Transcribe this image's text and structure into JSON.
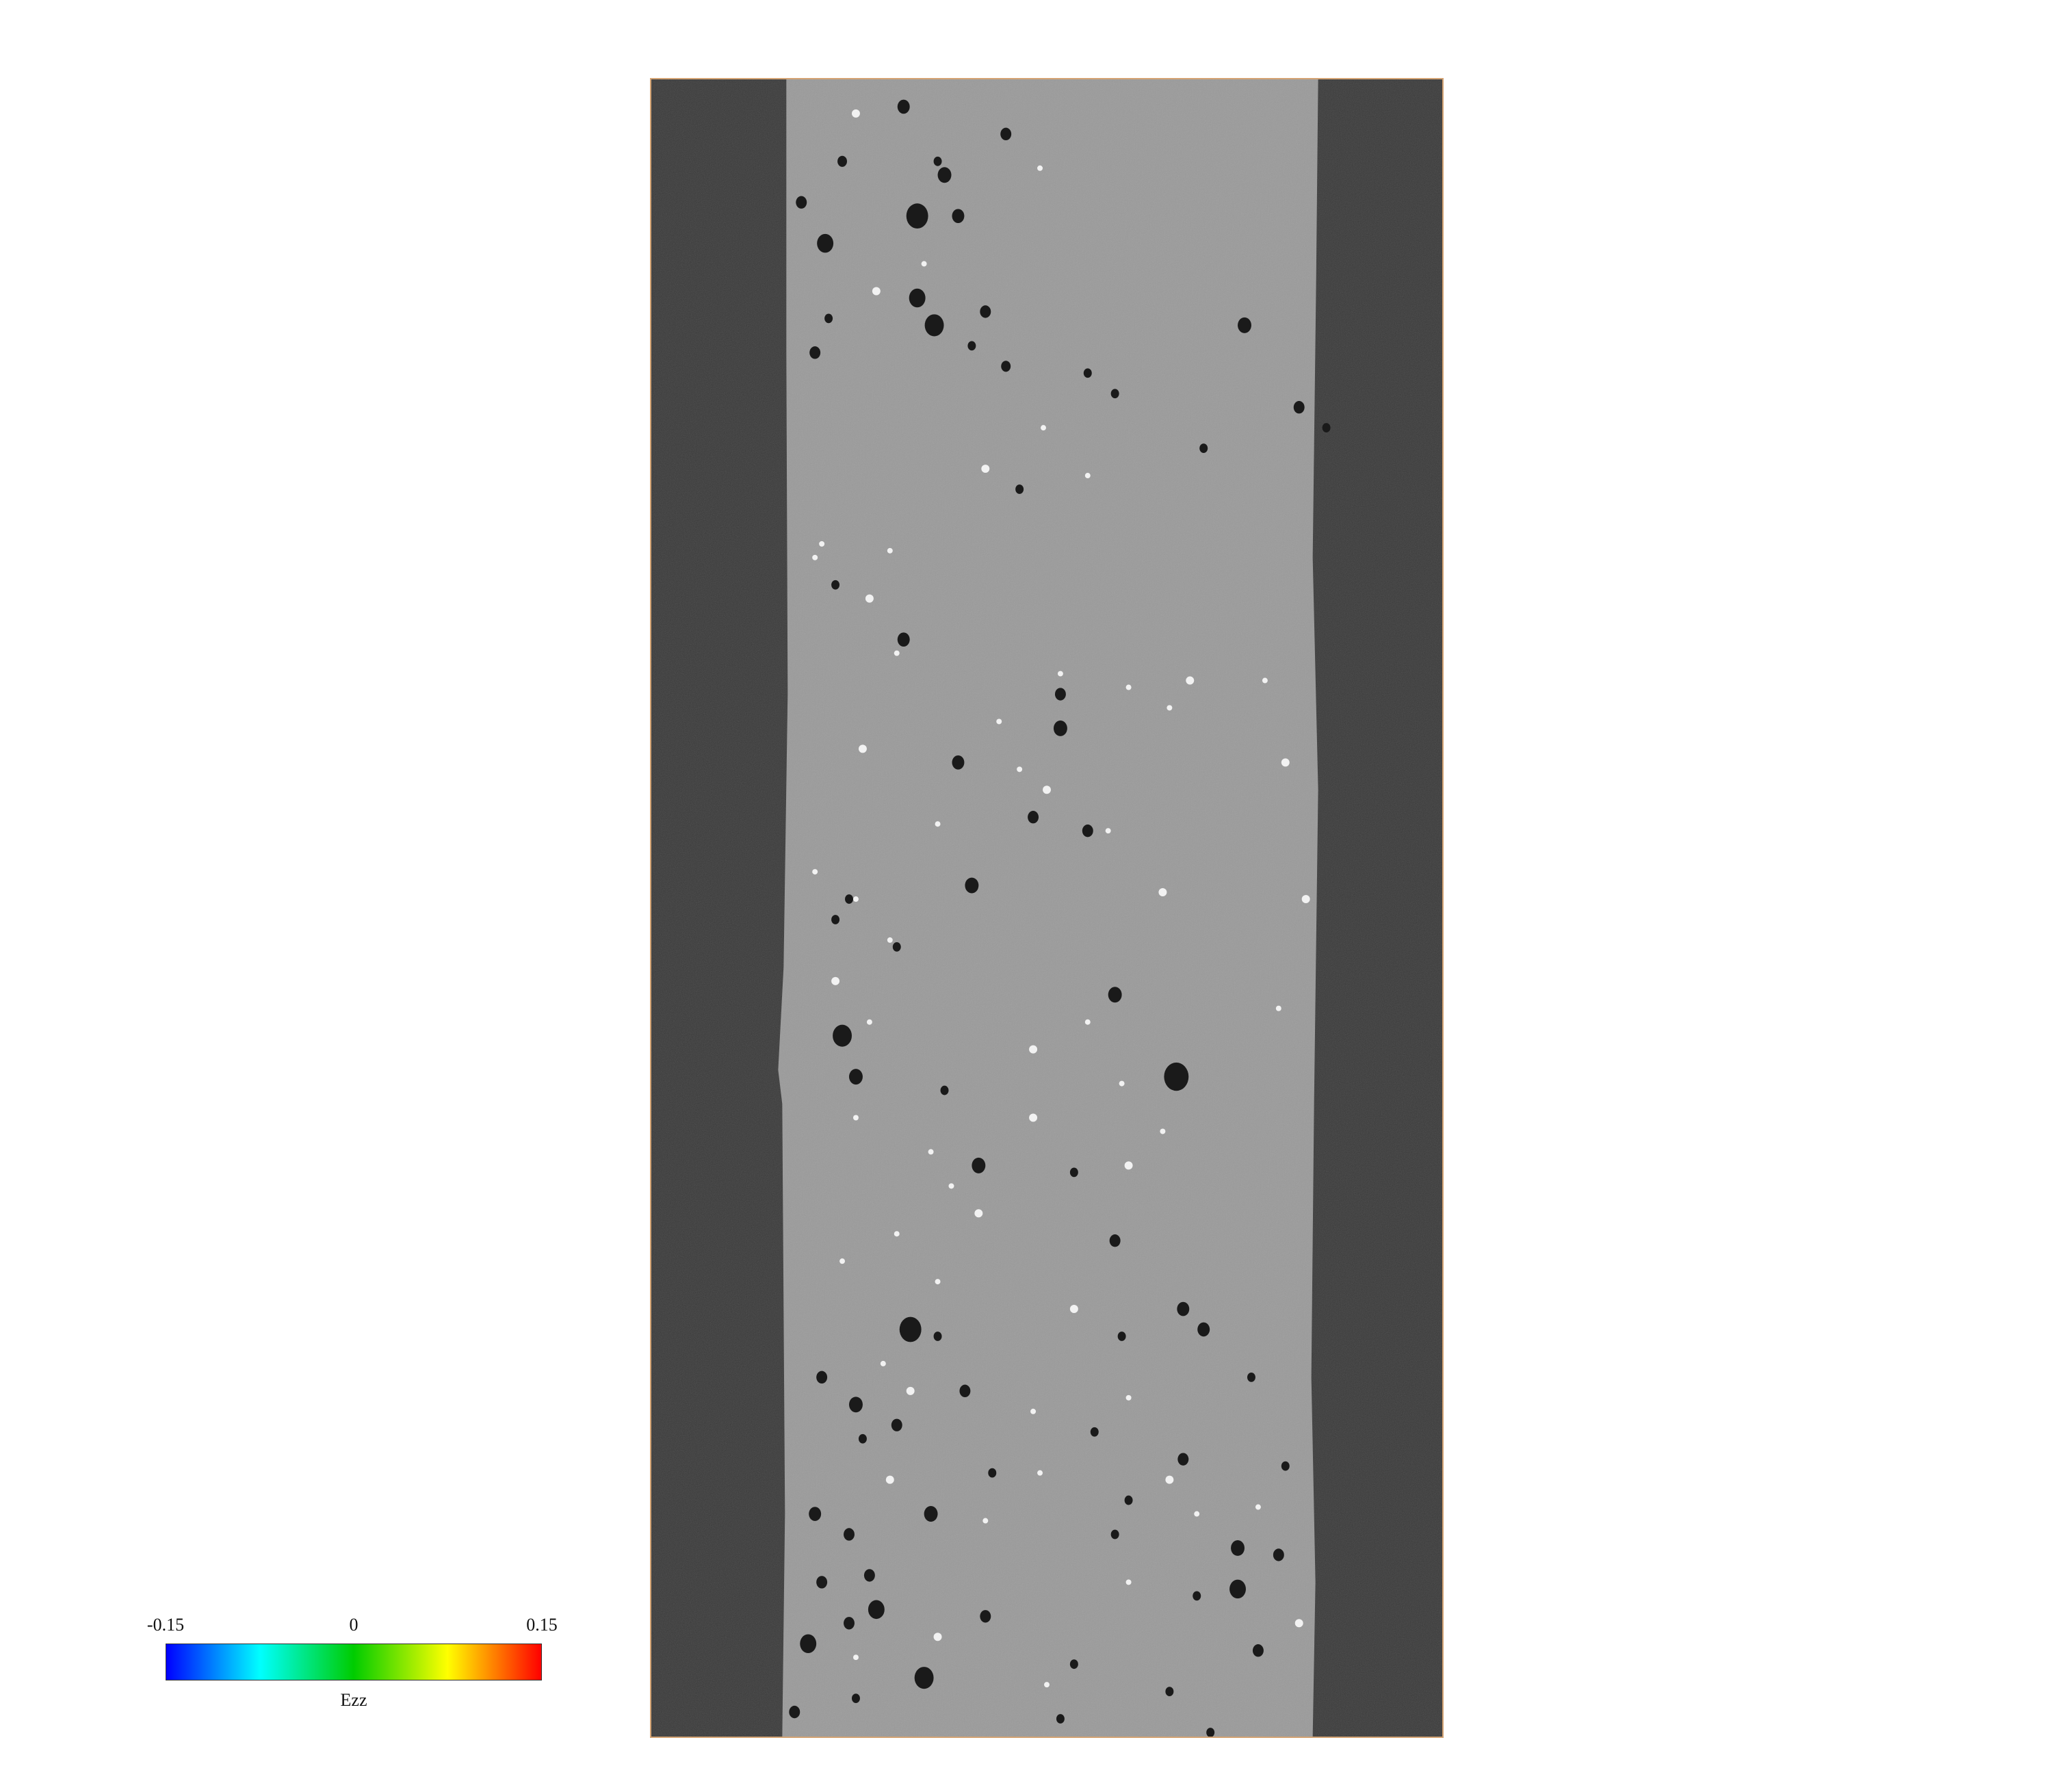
{
  "colorbar": {
    "min_label": "-0.15",
    "mid_label": "0",
    "max_label": "0.15",
    "field_label": "Ezz",
    "gradient_colors": [
      "#0000ff",
      "#00ffff",
      "#00cc00",
      "#ffff00",
      "#ff0000"
    ]
  },
  "scan": {
    "background_color": "#3a3a3a",
    "specimen_color": "#9a9a9a",
    "border_color": "#d4a373"
  }
}
